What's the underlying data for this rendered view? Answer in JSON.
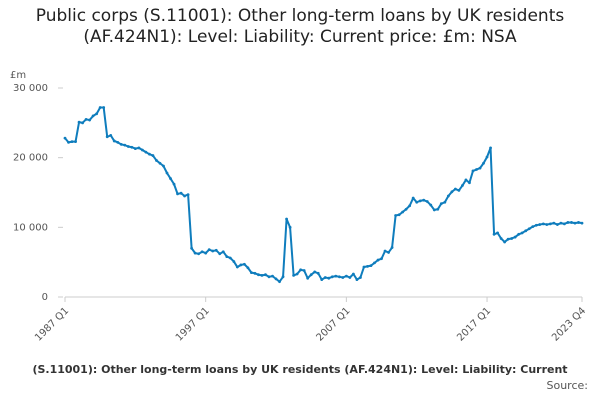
{
  "chart_data": {
    "type": "line",
    "title": "Public corps (S.11001): Other long-term loans by UK residents (AF.424N1): Level: Liability: Current price: £m: NSA",
    "y_label": "£m",
    "x_label": "(S.11001): Other long-term loans by UK residents (AF.424N1): Level: Liability: Current",
    "source": "Source:",
    "categories": [
      "1987 Q1",
      null,
      null,
      null,
      null,
      null,
      null,
      null,
      null,
      null,
      null,
      null,
      null,
      null,
      null,
      null,
      null,
      null,
      null,
      null,
      null,
      null,
      null,
      null,
      null,
      null,
      null,
      null,
      null,
      null,
      null,
      null,
      null,
      null,
      null,
      null,
      null,
      null,
      null,
      null,
      "1997 Q1",
      null,
      null,
      null,
      null,
      null,
      null,
      null,
      null,
      null,
      null,
      null,
      null,
      null,
      null,
      null,
      null,
      null,
      null,
      null,
      null,
      null,
      null,
      null,
      null,
      null,
      null,
      null,
      null,
      null,
      null,
      null,
      null,
      null,
      null,
      null,
      null,
      null,
      null,
      null,
      "2007 Q1",
      null,
      null,
      null,
      null,
      null,
      null,
      null,
      null,
      null,
      null,
      null,
      null,
      null,
      null,
      null,
      null,
      null,
      null,
      null,
      null,
      null,
      null,
      null,
      null,
      null,
      null,
      null,
      null,
      null,
      null,
      null,
      null,
      null,
      null,
      null,
      null,
      null,
      null,
      null,
      "2017 Q1",
      null,
      null,
      null,
      null,
      null,
      null,
      null,
      null,
      null,
      null,
      null,
      null,
      null,
      null,
      null,
      null,
      null,
      null,
      null,
      null,
      null,
      null,
      null,
      null,
      null,
      null,
      "2023 Q4"
    ],
    "series": [
      {
        "name": "Public corps (S.11001): Other long-term loans by UK residents (AF.424N1)",
        "color": "#0f7dbd",
        "values": [
          22800,
          22200,
          22300,
          22300,
          25100,
          25000,
          25500,
          25400,
          26000,
          26300,
          27200,
          27200,
          23000,
          23200,
          22400,
          22200,
          21900,
          21800,
          21600,
          21500,
          21300,
          21400,
          21100,
          20800,
          20500,
          20300,
          19600,
          19200,
          18800,
          17800,
          17000,
          16200,
          14800,
          14900,
          14500,
          14700,
          7000,
          6300,
          6200,
          6500,
          6300,
          6800,
          6600,
          6700,
          6200,
          6500,
          5800,
          5600,
          5100,
          4300,
          4600,
          4700,
          4200,
          3500,
          3400,
          3200,
          3100,
          3200,
          2900,
          3000,
          2600,
          2200,
          2900,
          11200,
          10000,
          3100,
          3300,
          3900,
          3800,
          2700,
          3200,
          3600,
          3400,
          2500,
          2800,
          2700,
          2900,
          3000,
          2900,
          2800,
          3000,
          2800,
          3300,
          2500,
          2800,
          4300,
          4400,
          4500,
          4900,
          5300,
          5500,
          6600,
          6400,
          7100,
          11700,
          11800,
          12200,
          12600,
          13100,
          14200,
          13600,
          13800,
          13900,
          13700,
          13200,
          12500,
          12600,
          13400,
          13600,
          14500,
          15100,
          15500,
          15300,
          16000,
          16800,
          16400,
          18100,
          18300,
          18500,
          19200,
          20100,
          21400,
          9000,
          9200,
          8400,
          7900,
          8300,
          8400,
          8600,
          9000,
          9200,
          9500,
          9800,
          10100,
          10300,
          10400,
          10500,
          10400,
          10500,
          10600,
          10400,
          10600,
          10500,
          10700,
          10700,
          10600,
          10700,
          10600
        ]
      }
    ],
    "ylim": [
      0,
      30000
    ],
    "yticks": [
      0,
      {
        "value": 10000,
        "label": "10 000"
      },
      {
        "value": 20000,
        "label": "20 000"
      },
      {
        "value": 30000,
        "label": "30 000"
      }
    ],
    "grid": false
  }
}
